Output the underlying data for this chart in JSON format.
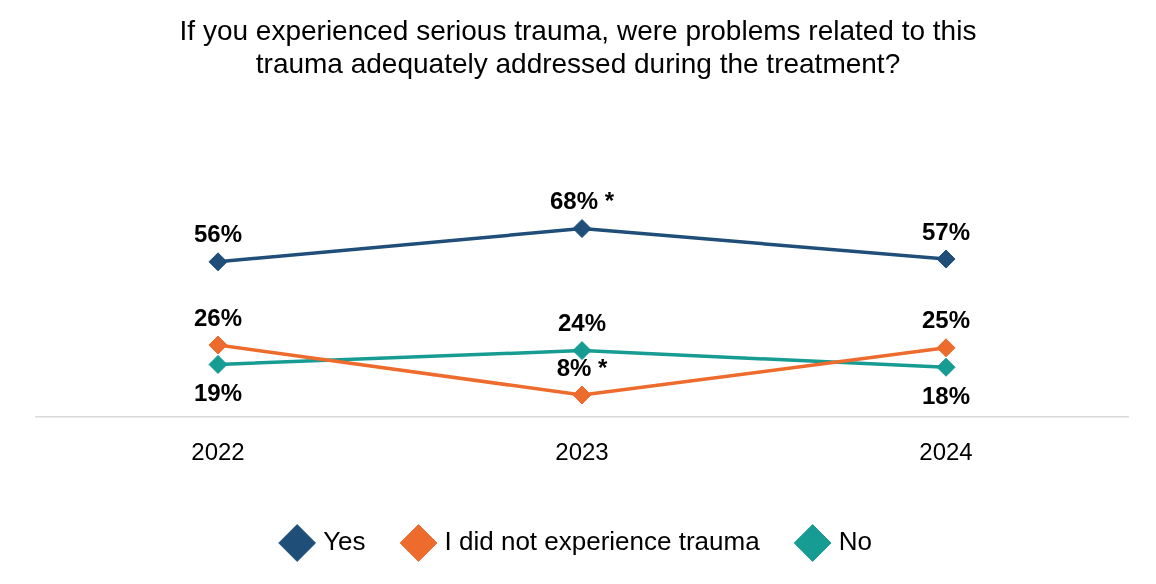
{
  "chart_data": {
    "type": "line",
    "title": "If you experienced serious trauma, were problems related to this trauma adequately addressed during the treatment?",
    "categories": [
      "2022",
      "2023",
      "2024"
    ],
    "series": [
      {
        "name": "Yes",
        "color": "#1f4e79",
        "values": [
          56,
          68,
          57
        ],
        "value_labels": [
          "56%",
          "68% *",
          "57%"
        ]
      },
      {
        "name": "I did not experience trauma",
        "color": "#ed6b2d",
        "values": [
          26,
          8,
          25
        ],
        "value_labels": [
          "26%",
          "8% *",
          "25%"
        ]
      },
      {
        "name": "No",
        "color": "#169c92",
        "values": [
          19,
          24,
          18
        ],
        "value_labels": [
          "19%",
          "24%",
          "18%"
        ]
      }
    ],
    "tick_labels": "x",
    "grid": false,
    "legend": "bottom",
    "marker": "diamond",
    "line_style": "solid"
  }
}
